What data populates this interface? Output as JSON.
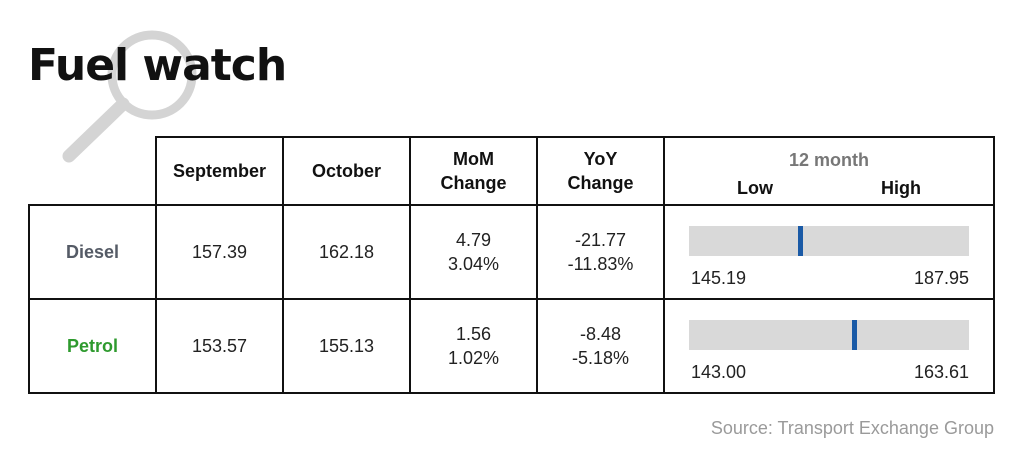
{
  "title": "Fuel watch",
  "table": {
    "headers": {
      "september": "September",
      "october": "October",
      "mom_line1": "MoM",
      "mom_line2": "Change",
      "yoy_line1": "YoY",
      "yoy_line2": "Change",
      "range_title": "12 month",
      "range_low": "Low",
      "range_high": "High"
    },
    "rows": [
      {
        "name": "Diesel",
        "name_color": "#555b66",
        "september": "157.39",
        "october": "162.18",
        "mom_abs": "4.79",
        "mom_pct": "3.04%",
        "yoy_abs": "-21.77",
        "yoy_pct": "-11.83%",
        "low": "145.19",
        "high": "187.95",
        "current_value": 162.18
      },
      {
        "name": "Petrol",
        "name_color": "#2e9a2e",
        "september": "153.57",
        "october": "155.13",
        "mom_abs": "1.56",
        "mom_pct": "1.02%",
        "yoy_abs": "-8.48",
        "yoy_pct": "-5.18%",
        "low": "143.00",
        "high": "163.61",
        "current_value": 155.13
      }
    ]
  },
  "marker_color": "#1a5aa6",
  "source": "Source: Transport Exchange Group",
  "decoration_icon": "magnifying-glass-icon"
}
